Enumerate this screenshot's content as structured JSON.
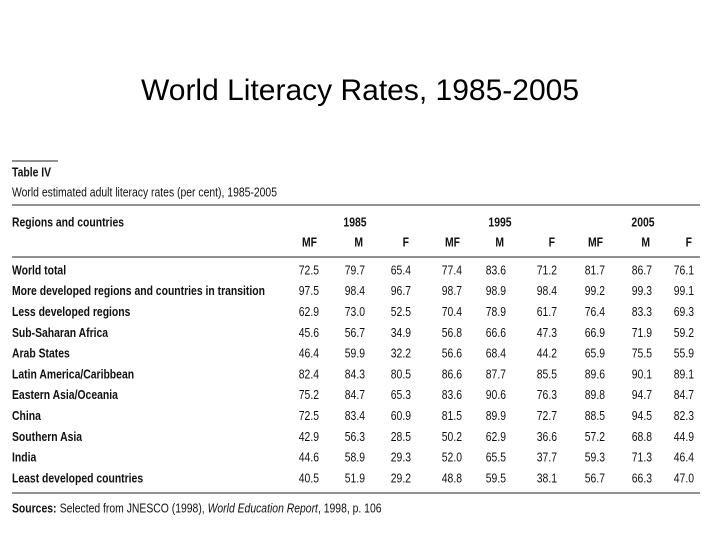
{
  "title": "World Literacy Rates, 1985-2005",
  "table": {
    "label": "Table IV",
    "caption": "World estimated adult literacy rates (per cent), 1985-2005",
    "row_header": "Regions and countries",
    "years": [
      "1985",
      "1995",
      "2005"
    ],
    "columns": [
      "MF",
      "M",
      "F",
      "MF",
      "M",
      "F",
      "MF",
      "M",
      "F"
    ],
    "rows": [
      [
        "World total",
        "72.5",
        "79.7",
        "65.4",
        "77.4",
        "83.6",
        "71.2",
        "81.7",
        "86.7",
        "76.1"
      ],
      [
        "More developed regions and countries in transition",
        "97.5",
        "98.4",
        "96.7",
        "98.7",
        "98.9",
        "98.4",
        "99.2",
        "99.3",
        "99.1"
      ],
      [
        "Less developed regions",
        "62.9",
        "73.0",
        "52.5",
        "70.4",
        "78.9",
        "61.7",
        "76.4",
        "83.3",
        "69.3"
      ],
      [
        "Sub-Saharan Africa",
        "45.6",
        "56.7",
        "34.9",
        "56.8",
        "66.6",
        "47.3",
        "66.9",
        "71.9",
        "59.2"
      ],
      [
        "Arab States",
        "46.4",
        "59.9",
        "32.2",
        "56.6",
        "68.4",
        "44.2",
        "65.9",
        "75.5",
        "55.9"
      ],
      [
        "Latin America/Caribbean",
        "82.4",
        "84.3",
        "80.5",
        "86.6",
        "87.7",
        "85.5",
        "89.6",
        "90.1",
        "89.1"
      ],
      [
        "Eastern Asia/Oceania",
        "75.2",
        "84.7",
        "65.3",
        "83.6",
        "90.6",
        "76.3",
        "89.8",
        "94.7",
        "84.7"
      ],
      [
        "China",
        "72.5",
        "83.4",
        "60.9",
        "81.5",
        "89.9",
        "72.7",
        "88.5",
        "94.5",
        "82.3"
      ],
      [
        "Southern Asia",
        "42.9",
        "56.3",
        "28.5",
        "50.2",
        "62.9",
        "36.6",
        "57.2",
        "68.8",
        "44.9"
      ],
      [
        "India",
        "44.6",
        "58.9",
        "29.3",
        "52.0",
        "65.5",
        "37.7",
        "59.3",
        "71.3",
        "46.4"
      ],
      [
        "Least developed countries",
        "40.5",
        "51.9",
        "29.2",
        "48.8",
        "59.5",
        "38.1",
        "56.7",
        "66.3",
        "47.0"
      ]
    ],
    "source": {
      "label": "Sources:",
      "text": "Selected from JNESCO (1998), ",
      "italic": "World Education Report",
      "tail": ", 1998, p. 106"
    }
  }
}
